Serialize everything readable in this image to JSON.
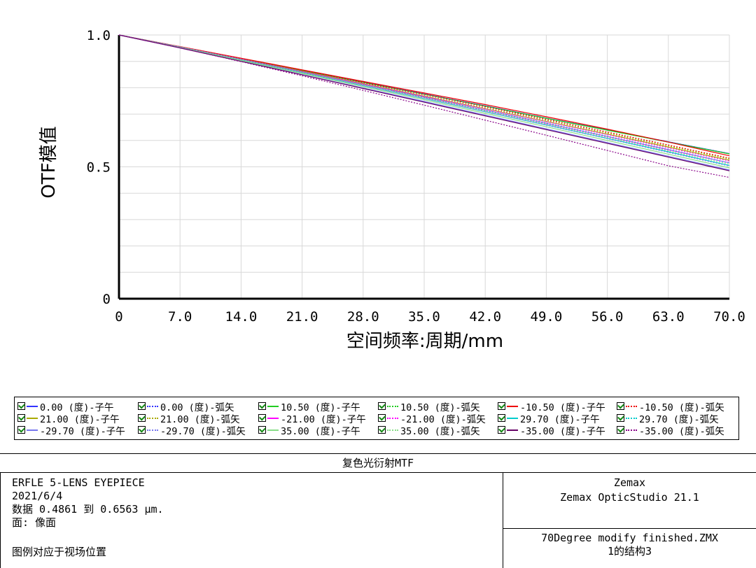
{
  "chart_data": {
    "type": "line",
    "xlabel": "空间频率:周期/mm",
    "ylabel": "OTF模值",
    "xlim": [
      0,
      70
    ],
    "ylim": [
      0,
      1
    ],
    "xticks": [
      "0",
      "7.0",
      "14.0",
      "21.0",
      "28.0",
      "35.0",
      "42.0",
      "49.0",
      "56.0",
      "63.0",
      "70.0"
    ],
    "yticks": [
      "0",
      "0.5",
      "1.0"
    ],
    "grid": true,
    "x": [
      0,
      7,
      14,
      21,
      28,
      35,
      42,
      49,
      56,
      63,
      70
    ],
    "series": [
      {
        "name": "0.00 (度)-子午",
        "color": "#3333ff",
        "dash": false,
        "values": [
          1.0,
          0.955,
          0.91,
          0.866,
          0.821,
          0.776,
          0.731,
          0.685,
          0.64,
          0.595,
          0.55
        ]
      },
      {
        "name": "0.00 (度)-弧矢",
        "color": "#3333ff",
        "dash": true,
        "values": [
          1.0,
          0.955,
          0.91,
          0.866,
          0.821,
          0.776,
          0.731,
          0.685,
          0.64,
          0.595,
          0.55
        ]
      },
      {
        "name": "10.50 (度)-子午",
        "color": "#22cc22",
        "dash": false,
        "values": [
          1.0,
          0.955,
          0.91,
          0.865,
          0.82,
          0.775,
          0.73,
          0.684,
          0.639,
          0.594,
          0.549
        ]
      },
      {
        "name": "10.50 (度)-弧矢",
        "color": "#22cc22",
        "dash": true,
        "values": [
          1.0,
          0.955,
          0.91,
          0.865,
          0.82,
          0.775,
          0.73,
          0.684,
          0.639,
          0.594,
          0.549
        ]
      },
      {
        "name": "-10.50 (度)-子午",
        "color": "#ee0000",
        "dash": false,
        "values": [
          1.0,
          0.956,
          0.912,
          0.868,
          0.824,
          0.78,
          0.736,
          0.69,
          0.643,
          0.594,
          0.542
        ]
      },
      {
        "name": "-10.50 (度)-弧矢",
        "color": "#ee0000",
        "dash": true,
        "values": [
          1.0,
          0.955,
          0.91,
          0.865,
          0.82,
          0.775,
          0.728,
          0.68,
          0.632,
          0.583,
          0.533
        ]
      },
      {
        "name": "21.00 (度)-子午",
        "color": "#aaaa00",
        "dash": false,
        "values": [
          1.0,
          0.955,
          0.908,
          0.862,
          0.815,
          0.768,
          0.72,
          0.672,
          0.624,
          0.575,
          0.525
        ]
      },
      {
        "name": "21.00 (度)-弧矢",
        "color": "#aaaa00",
        "dash": true,
        "values": [
          1.0,
          0.955,
          0.909,
          0.863,
          0.817,
          0.77,
          0.723,
          0.676,
          0.628,
          0.579,
          0.53
        ]
      },
      {
        "name": "-21.00 (度)-子午",
        "color": "#ff00ff",
        "dash": false,
        "values": [
          1.0,
          0.954,
          0.907,
          0.86,
          0.812,
          0.764,
          0.715,
          0.665,
          0.615,
          0.565,
          0.515
        ]
      },
      {
        "name": "-21.00 (度)-弧矢",
        "color": "#ff00ff",
        "dash": true,
        "values": [
          1.0,
          0.955,
          0.909,
          0.862,
          0.815,
          0.768,
          0.72,
          0.671,
          0.622,
          0.572,
          0.522
        ]
      },
      {
        "name": "29.70 (度)-子午",
        "color": "#00cccc",
        "dash": false,
        "values": [
          1.0,
          0.953,
          0.905,
          0.857,
          0.808,
          0.759,
          0.709,
          0.659,
          0.608,
          0.557,
          0.505
        ]
      },
      {
        "name": "29.70 (度)-弧矢",
        "color": "#00cccc",
        "dash": true,
        "values": [
          1.0,
          0.954,
          0.907,
          0.86,
          0.812,
          0.764,
          0.715,
          0.666,
          0.616,
          0.566,
          0.515
        ]
      },
      {
        "name": "-29.70 (度)-子午",
        "color": "#7777ee",
        "dash": false,
        "values": [
          1.0,
          0.951,
          0.901,
          0.85,
          0.799,
          0.748,
          0.696,
          0.644,
          0.592,
          0.54,
          0.488
        ]
      },
      {
        "name": "-29.70 (度)-弧矢",
        "color": "#7777ee",
        "dash": true,
        "values": [
          1.0,
          0.953,
          0.905,
          0.857,
          0.808,
          0.759,
          0.709,
          0.658,
          0.607,
          0.555,
          0.503
        ]
      },
      {
        "name": "35.00 (度)-子午",
        "color": "#88dd88",
        "dash": false,
        "values": [
          1.0,
          0.952,
          0.903,
          0.854,
          0.804,
          0.754,
          0.703,
          0.652,
          0.6,
          0.548,
          0.496
        ]
      },
      {
        "name": "35.00 (度)-弧矢",
        "color": "#88dd88",
        "dash": true,
        "values": [
          1.0,
          0.953,
          0.906,
          0.858,
          0.81,
          0.761,
          0.712,
          0.662,
          0.612,
          0.561,
          0.51
        ]
      },
      {
        "name": "-35.00 (度)-子午",
        "color": "#660066",
        "dash": false,
        "values": [
          1.0,
          0.951,
          0.9,
          0.849,
          0.797,
          0.745,
          0.693,
          0.641,
          0.589,
          0.537,
          0.485
        ]
      },
      {
        "name": "-35.00 (度)-弧矢",
        "color": "#880088",
        "dash": true,
        "values": [
          1.0,
          0.951,
          0.899,
          0.845,
          0.79,
          0.734,
          0.677,
          0.62,
          0.562,
          0.504,
          0.46
        ]
      }
    ]
  },
  "info": {
    "title": "复色光衍射MTF",
    "left_line1": "ERFLE 5-LENS EYEPIECE",
    "left_line2": "2021/6/4",
    "left_line3": "数据 0.4861 到 0.6563 μm.",
    "left_line4": "面: 像面",
    "left_line5": "图例对应于视场位置",
    "right_top1": "Zemax",
    "right_top2": "Zemax OpticStudio 21.1",
    "right_bottom1": "70Degree modify finished.ZMX",
    "right_bottom2": "1的结构3"
  }
}
